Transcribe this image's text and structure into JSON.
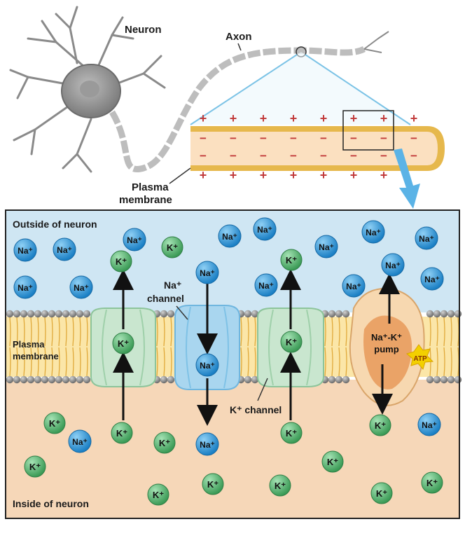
{
  "labels": {
    "neuron": "Neuron",
    "axon": "Axon",
    "plasma_membrane_top_1": "Plasma",
    "plasma_membrane_top_2": "membrane",
    "outside": "Outside of neuron",
    "inside": "Inside of neuron",
    "plasma_membrane_side_1": "Plasma",
    "plasma_membrane_side_2": "membrane",
    "na_channel_1": "Na⁺",
    "na_channel_2": "channel",
    "k_channel": "K⁺ channel",
    "pump_1": "Na⁺-K⁺",
    "pump_2": "pump",
    "atp": "ATP"
  },
  "ions": {
    "na": "Na⁺",
    "k": "K⁺"
  },
  "signs": {
    "plus": "+",
    "minus": "−"
  },
  "colors": {
    "outside_bg": "#cfe6f3",
    "inside_bg": "#f6d7b8",
    "na_ion": "#1f8fd6",
    "k_ion": "#4fb06a",
    "membrane_tail": "#e8b74a",
    "axon_fill": "#fbe0c0",
    "axon_border": "#e6b84c",
    "zoom_lines": "#7cc3e6",
    "arrow_blue": "#5bb3e6",
    "na_channel": "#a9d6ef",
    "k_channel": "#c9e6cf",
    "pump_outer": "#f7d8b0",
    "pump_inner": "#e79a5b",
    "atp_star": "#f3d000",
    "signs": "#c23b3b"
  },
  "icons": {
    "neuron": "neuron-cell-icon",
    "atp": "atp-star-icon"
  }
}
